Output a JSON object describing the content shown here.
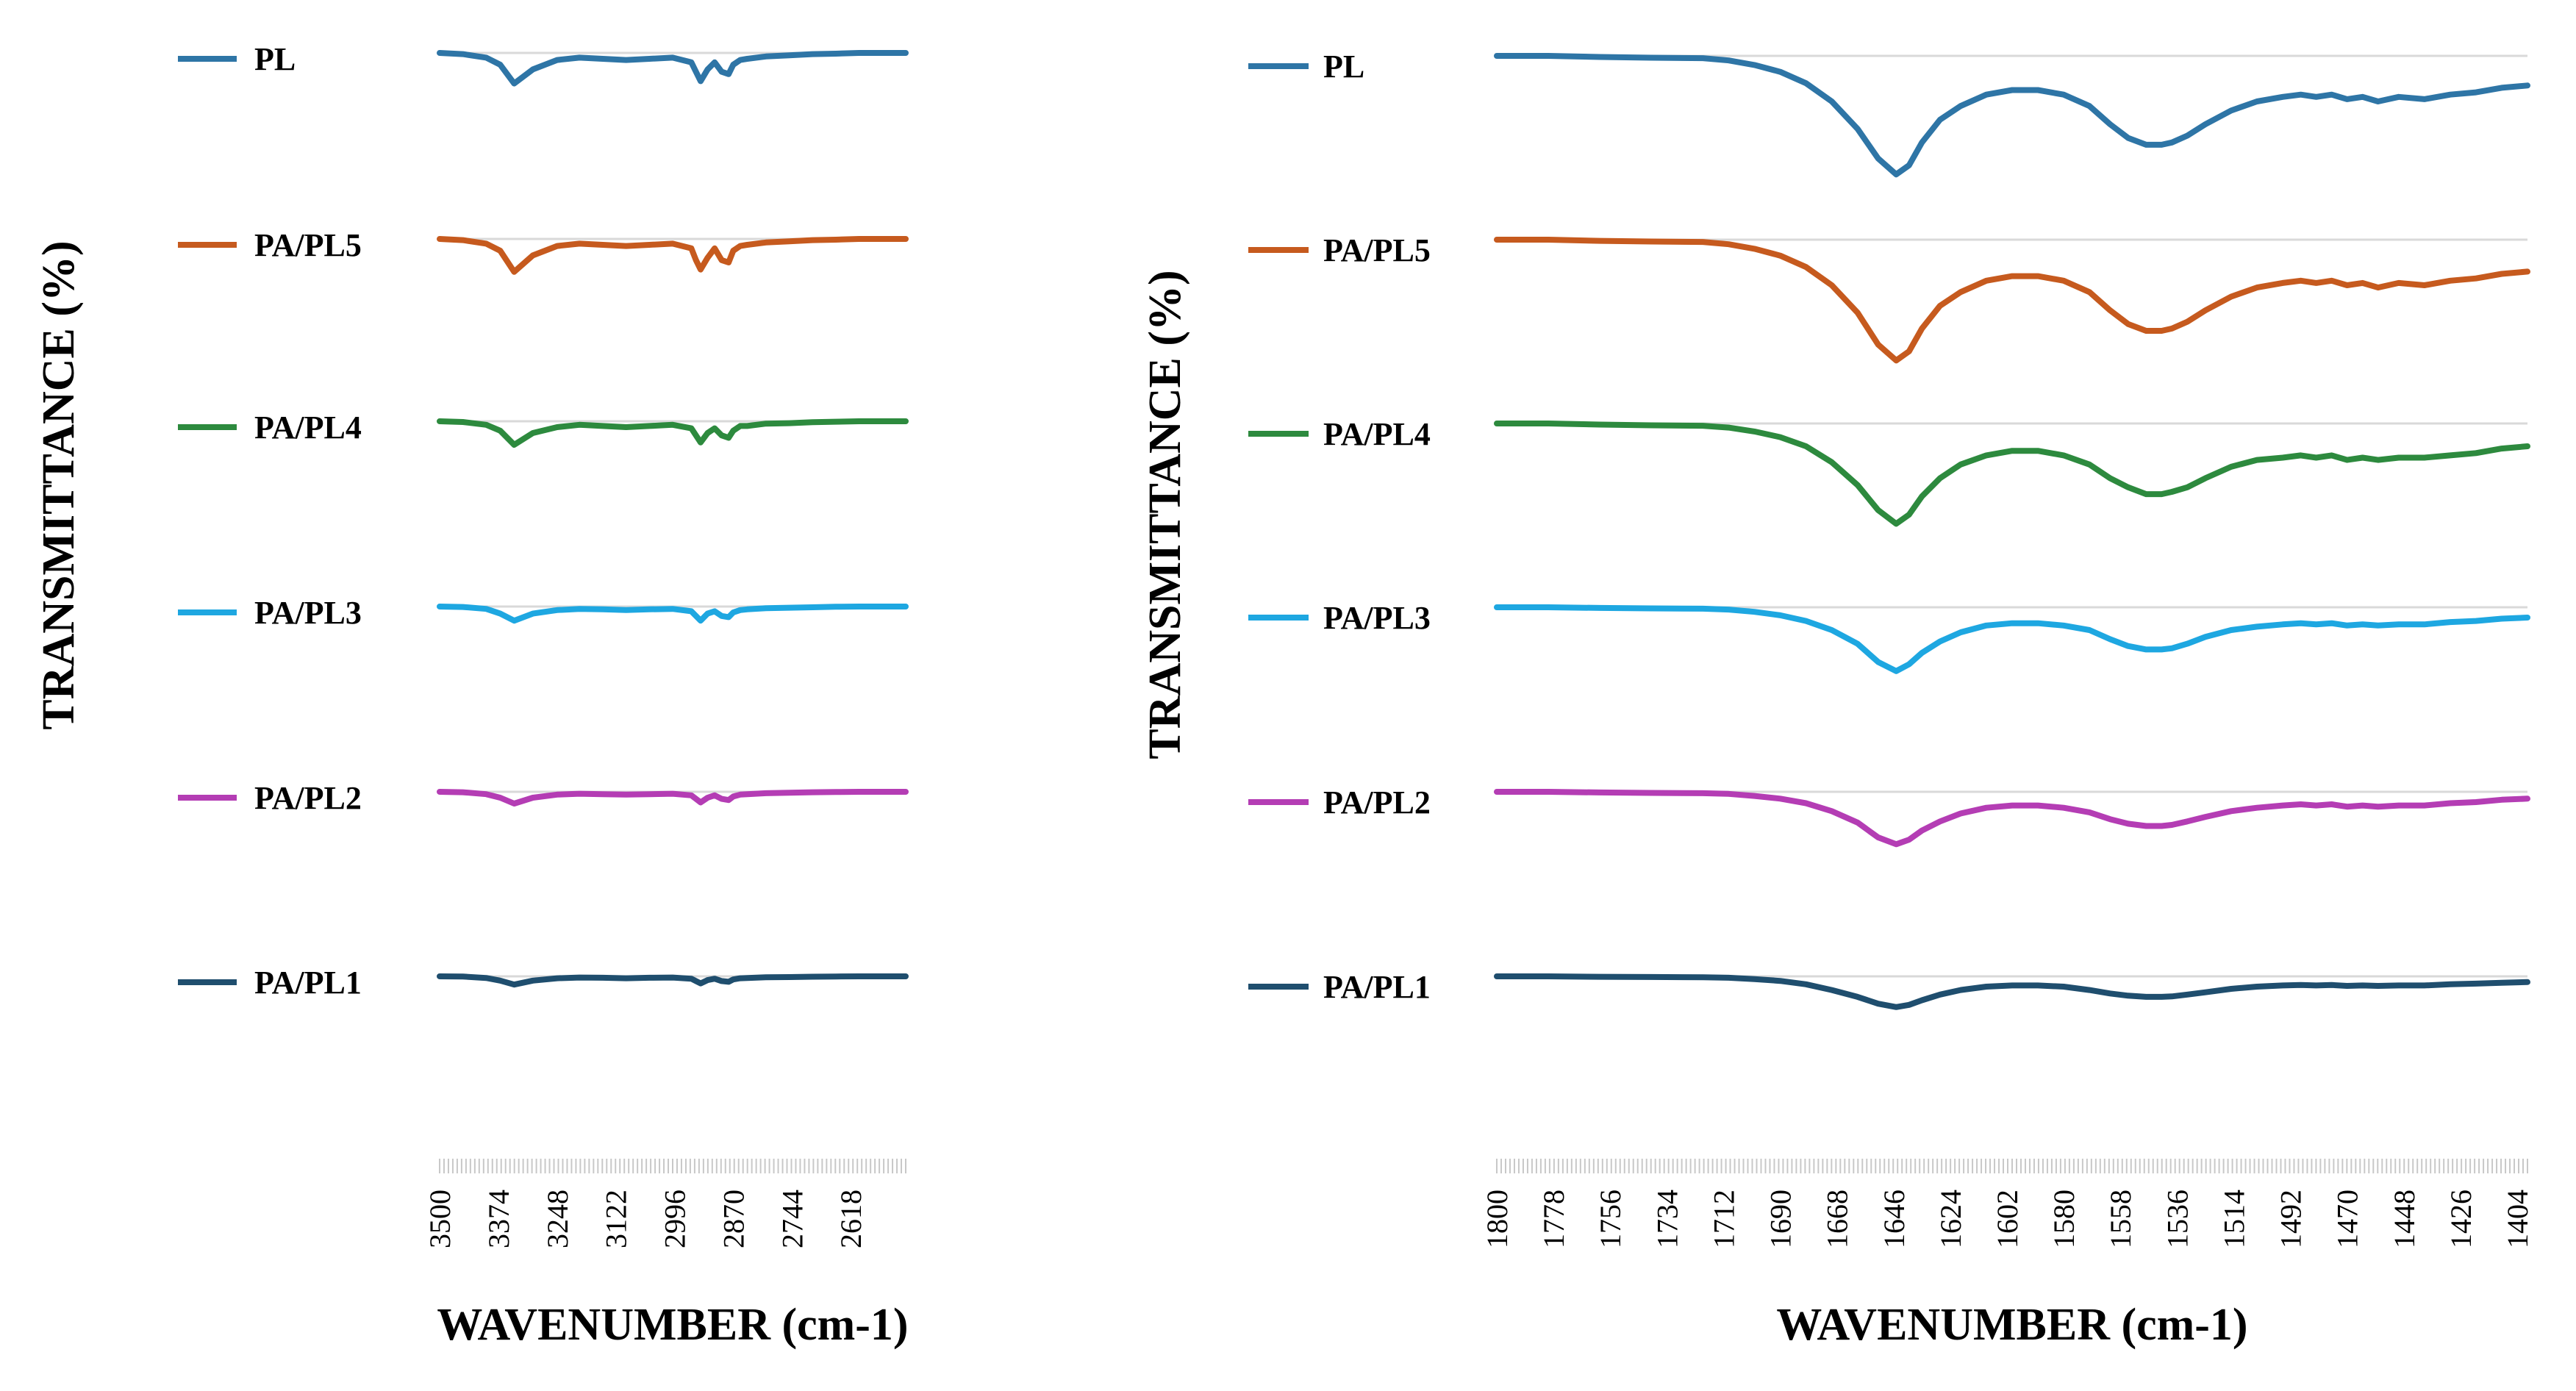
{
  "chart_data": [
    {
      "type": "line",
      "xlabel": "WAVENUMBER (cm-1)",
      "ylabel": "TRANSMITTANCE (%)",
      "x_ticks": [
        3500,
        3374,
        3248,
        3122,
        2996,
        2870,
        2744,
        2618
      ],
      "xlim": [
        3500,
        2500
      ],
      "grid": true,
      "legend": "left",
      "series": [
        {
          "name": "PL",
          "color": "#2E75A6",
          "x": [
            3500,
            3450,
            3400,
            3370,
            3340,
            3300,
            3248,
            3200,
            3150,
            3100,
            3050,
            3000,
            2960,
            2950,
            2940,
            2925,
            2910,
            2895,
            2880,
            2870,
            2855,
            2840,
            2800,
            2750,
            2700,
            2650,
            2600,
            2550,
            2500
          ],
          "y": [
            0,
            -0.5,
            -2,
            -5,
            -13,
            -7,
            -3,
            -2,
            -2.5,
            -3,
            -2.5,
            -2,
            -4,
            -8,
            -12,
            -7,
            -4,
            -8,
            -9,
            -5,
            -3,
            -2.5,
            -1.5,
            -1,
            -0.5,
            -0.3,
            0,
            0,
            0
          ]
        },
        {
          "name": "PA/PL5",
          "color": "#C65A1E",
          "x": [
            3500,
            3450,
            3400,
            3370,
            3340,
            3300,
            3248,
            3200,
            3150,
            3100,
            3050,
            3000,
            2960,
            2950,
            2940,
            2925,
            2910,
            2895,
            2880,
            2870,
            2855,
            2840,
            2800,
            2750,
            2700,
            2650,
            2600,
            2550,
            2500
          ],
          "y": [
            0,
            -0.5,
            -2,
            -5,
            -14,
            -7,
            -3,
            -2,
            -2.5,
            -3,
            -2.5,
            -2,
            -4,
            -9,
            -13,
            -8,
            -4,
            -9,
            -10,
            -5,
            -3,
            -2.5,
            -1.5,
            -1,
            -0.5,
            -0.3,
            0,
            0,
            0
          ]
        },
        {
          "name": "PA/PL4",
          "color": "#2D8A3E",
          "x": [
            3500,
            3450,
            3400,
            3370,
            3340,
            3300,
            3248,
            3200,
            3150,
            3100,
            3050,
            3000,
            2960,
            2950,
            2940,
            2925,
            2910,
            2895,
            2880,
            2870,
            2855,
            2840,
            2800,
            2750,
            2700,
            2650,
            2600,
            2550,
            2500
          ],
          "y": [
            0,
            -0.3,
            -1.5,
            -4,
            -10,
            -5,
            -2.5,
            -1.5,
            -2,
            -2.5,
            -2,
            -1.5,
            -3,
            -6,
            -9,
            -5,
            -3,
            -6,
            -7,
            -4,
            -2,
            -2,
            -1,
            -0.8,
            -0.4,
            -0.2,
            0,
            0,
            0
          ]
        },
        {
          "name": "PA/PL3",
          "color": "#1EA7E1",
          "x": [
            3500,
            3450,
            3400,
            3370,
            3340,
            3300,
            3248,
            3200,
            3150,
            3100,
            3050,
            3000,
            2960,
            2950,
            2940,
            2925,
            2910,
            2895,
            2880,
            2870,
            2855,
            2840,
            2800,
            2750,
            2700,
            2650,
            2600,
            2550,
            2500
          ],
          "y": [
            0,
            -0.2,
            -1,
            -3,
            -6,
            -3,
            -1.5,
            -1,
            -1.2,
            -1.5,
            -1.2,
            -1,
            -2,
            -4,
            -6,
            -3,
            -2,
            -4,
            -4.5,
            -2.5,
            -1.5,
            -1.2,
            -0.7,
            -0.5,
            -0.3,
            -0.1,
            0,
            0,
            0
          ]
        },
        {
          "name": "PA/PL2",
          "color": "#B43DB4",
          "x": [
            3500,
            3450,
            3400,
            3370,
            3340,
            3300,
            3248,
            3200,
            3150,
            3100,
            3050,
            3000,
            2960,
            2950,
            2940,
            2925,
            2910,
            2895,
            2880,
            2870,
            2855,
            2840,
            2800,
            2750,
            2700,
            2650,
            2600,
            2550,
            2500
          ],
          "y": [
            0,
            -0.2,
            -1,
            -2.5,
            -5,
            -2.5,
            -1.2,
            -0.8,
            -1,
            -1.2,
            -1,
            -0.8,
            -1.5,
            -3,
            -4.5,
            -2.5,
            -1.5,
            -3,
            -3.5,
            -2,
            -1.2,
            -1,
            -0.6,
            -0.4,
            -0.2,
            -0.1,
            0,
            0,
            0
          ]
        },
        {
          "name": "PA/PL1",
          "color": "#1F4E6E",
          "x": [
            3500,
            3450,
            3400,
            3370,
            3340,
            3300,
            3248,
            3200,
            3150,
            3100,
            3050,
            3000,
            2960,
            2950,
            2940,
            2925,
            2910,
            2895,
            2880,
            2870,
            2855,
            2840,
            2800,
            2750,
            2700,
            2650,
            2600,
            2550,
            2500
          ],
          "y": [
            0,
            -0.1,
            -0.7,
            -1.8,
            -3.5,
            -1.8,
            -0.8,
            -0.5,
            -0.6,
            -0.8,
            -0.6,
            -0.5,
            -1,
            -2,
            -3,
            -1.6,
            -1,
            -2,
            -2.3,
            -1.3,
            -0.8,
            -0.7,
            -0.4,
            -0.3,
            -0.15,
            -0.05,
            0,
            0,
            0
          ]
        }
      ]
    },
    {
      "type": "line",
      "xlabel": "WAVENUMBER (cm-1)",
      "ylabel": "TRANSMITTANCE (%)",
      "x_ticks": [
        1800,
        1778,
        1756,
        1734,
        1712,
        1690,
        1668,
        1646,
        1624,
        1602,
        1580,
        1558,
        1536,
        1514,
        1492,
        1470,
        1448,
        1426,
        1404
      ],
      "xlim": [
        1800,
        1400
      ],
      "grid": true,
      "legend": "left",
      "series": [
        {
          "name": "PL",
          "color": "#2E75A6",
          "x": [
            1800,
            1780,
            1760,
            1740,
            1720,
            1710,
            1700,
            1690,
            1680,
            1670,
            1660,
            1652,
            1645,
            1640,
            1635,
            1628,
            1620,
            1610,
            1600,
            1590,
            1580,
            1570,
            1562,
            1555,
            1548,
            1542,
            1538,
            1532,
            1525,
            1515,
            1505,
            1495,
            1488,
            1482,
            1476,
            1470,
            1464,
            1458,
            1450,
            1440,
            1430,
            1420,
            1410,
            1400
          ],
          "y": [
            0,
            0,
            -0.5,
            -0.8,
            -1,
            -2,
            -4,
            -7,
            -12,
            -20,
            -32,
            -45,
            -52,
            -48,
            -38,
            -28,
            -22,
            -17,
            -15,
            -15,
            -17,
            -22,
            -30,
            -36,
            -39,
            -39,
            -38,
            -35,
            -30,
            -24,
            -20,
            -18,
            -17,
            -18,
            -17,
            -19,
            -18,
            -20,
            -18,
            -19,
            -17,
            -16,
            -14,
            -13
          ]
        },
        {
          "name": "PA/PL5",
          "color": "#C65A1E",
          "x": [
            1800,
            1780,
            1760,
            1740,
            1720,
            1710,
            1700,
            1690,
            1680,
            1670,
            1660,
            1652,
            1645,
            1640,
            1635,
            1628,
            1620,
            1610,
            1600,
            1590,
            1580,
            1570,
            1562,
            1555,
            1548,
            1542,
            1538,
            1532,
            1525,
            1515,
            1505,
            1495,
            1488,
            1482,
            1476,
            1470,
            1464,
            1458,
            1450,
            1440,
            1430,
            1420,
            1410,
            1400
          ],
          "y": [
            0,
            0,
            -0.5,
            -0.8,
            -1,
            -2,
            -4,
            -7,
            -12,
            -20,
            -32,
            -46,
            -53,
            -49,
            -39,
            -29,
            -23,
            -18,
            -16,
            -16,
            -18,
            -23,
            -31,
            -37,
            -40,
            -40,
            -39,
            -36,
            -31,
            -25,
            -21,
            -19,
            -18,
            -19,
            -18,
            -20,
            -19,
            -21,
            -19,
            -20,
            -18,
            -17,
            -15,
            -14
          ]
        },
        {
          "name": "PA/PL4",
          "color": "#2D8A3E",
          "x": [
            1800,
            1780,
            1760,
            1740,
            1720,
            1710,
            1700,
            1690,
            1680,
            1670,
            1660,
            1652,
            1645,
            1640,
            1635,
            1628,
            1620,
            1610,
            1600,
            1590,
            1580,
            1570,
            1562,
            1555,
            1548,
            1542,
            1538,
            1532,
            1525,
            1515,
            1505,
            1495,
            1488,
            1482,
            1476,
            1470,
            1464,
            1458,
            1450,
            1440,
            1430,
            1420,
            1410,
            1400
          ],
          "y": [
            0,
            0,
            -0.5,
            -0.8,
            -1,
            -1.8,
            -3.5,
            -6,
            -10,
            -17,
            -27,
            -38,
            -44,
            -40,
            -32,
            -24,
            -18,
            -14,
            -12,
            -12,
            -14,
            -18,
            -24,
            -28,
            -31,
            -31,
            -30,
            -28,
            -24,
            -19,
            -16,
            -15,
            -14,
            -15,
            -14,
            -16,
            -15,
            -16,
            -15,
            -15,
            -14,
            -13,
            -11,
            -10
          ]
        },
        {
          "name": "PA/PL3",
          "color": "#1EA7E1",
          "x": [
            1800,
            1780,
            1760,
            1740,
            1720,
            1710,
            1700,
            1690,
            1680,
            1670,
            1660,
            1652,
            1645,
            1640,
            1635,
            1628,
            1620,
            1610,
            1600,
            1590,
            1580,
            1570,
            1562,
            1555,
            1548,
            1542,
            1538,
            1532,
            1525,
            1515,
            1505,
            1495,
            1488,
            1482,
            1476,
            1470,
            1464,
            1458,
            1450,
            1440,
            1430,
            1420,
            1410,
            1400
          ],
          "y": [
            0,
            0,
            -0.3,
            -0.5,
            -0.6,
            -1,
            -2,
            -3.5,
            -6,
            -10,
            -16,
            -24,
            -28,
            -25,
            -20,
            -15,
            -11,
            -8,
            -7,
            -7,
            -8,
            -10,
            -14,
            -17,
            -18.5,
            -18.5,
            -18,
            -16,
            -13,
            -10,
            -8.5,
            -7.5,
            -7,
            -7.5,
            -7,
            -8,
            -7.5,
            -8,
            -7.5,
            -7.5,
            -6.5,
            -6,
            -5,
            -4.5
          ]
        },
        {
          "name": "PA/PL2",
          "color": "#B43DB4",
          "x": [
            1800,
            1780,
            1760,
            1740,
            1720,
            1710,
            1700,
            1690,
            1680,
            1670,
            1660,
            1652,
            1645,
            1640,
            1635,
            1628,
            1620,
            1610,
            1600,
            1590,
            1580,
            1570,
            1562,
            1555,
            1548,
            1542,
            1538,
            1532,
            1525,
            1515,
            1505,
            1495,
            1488,
            1482,
            1476,
            1470,
            1464,
            1458,
            1450,
            1440,
            1430,
            1420,
            1410,
            1400
          ],
          "y": [
            0,
            0,
            -0.3,
            -0.5,
            -0.6,
            -0.9,
            -1.8,
            -3,
            -5,
            -8.5,
            -13.5,
            -20,
            -23,
            -21,
            -17,
            -13,
            -9.5,
            -7,
            -6,
            -6,
            -7,
            -9,
            -12,
            -14,
            -15,
            -15,
            -14.5,
            -13,
            -11,
            -8.5,
            -7,
            -6,
            -5.5,
            -6,
            -5.5,
            -6.5,
            -6,
            -6.5,
            -6,
            -6,
            -5,
            -4.5,
            -3.5,
            -3
          ]
        },
        {
          "name": "PA/PL1",
          "color": "#1F4E6E",
          "x": [
            1800,
            1780,
            1760,
            1740,
            1720,
            1710,
            1700,
            1690,
            1680,
            1670,
            1660,
            1652,
            1645,
            1640,
            1635,
            1628,
            1620,
            1610,
            1600,
            1590,
            1580,
            1570,
            1562,
            1555,
            1548,
            1542,
            1538,
            1532,
            1525,
            1515,
            1505,
            1495,
            1488,
            1482,
            1476,
            1470,
            1464,
            1458,
            1450,
            1440,
            1430,
            1420,
            1410,
            1400
          ],
          "y": [
            0,
            0,
            -0.2,
            -0.3,
            -0.4,
            -0.6,
            -1.2,
            -2,
            -3.5,
            -6,
            -9,
            -12,
            -13.5,
            -12.5,
            -10.5,
            -8,
            -6,
            -4.5,
            -4,
            -4,
            -4.5,
            -6,
            -7.5,
            -8.5,
            -9,
            -9,
            -8.8,
            -8,
            -7,
            -5.5,
            -4.5,
            -4,
            -3.8,
            -4,
            -3.8,
            -4.2,
            -4,
            -4.2,
            -4,
            -4,
            -3.5,
            -3.2,
            -2.8,
            -2.5
          ]
        }
      ]
    }
  ]
}
